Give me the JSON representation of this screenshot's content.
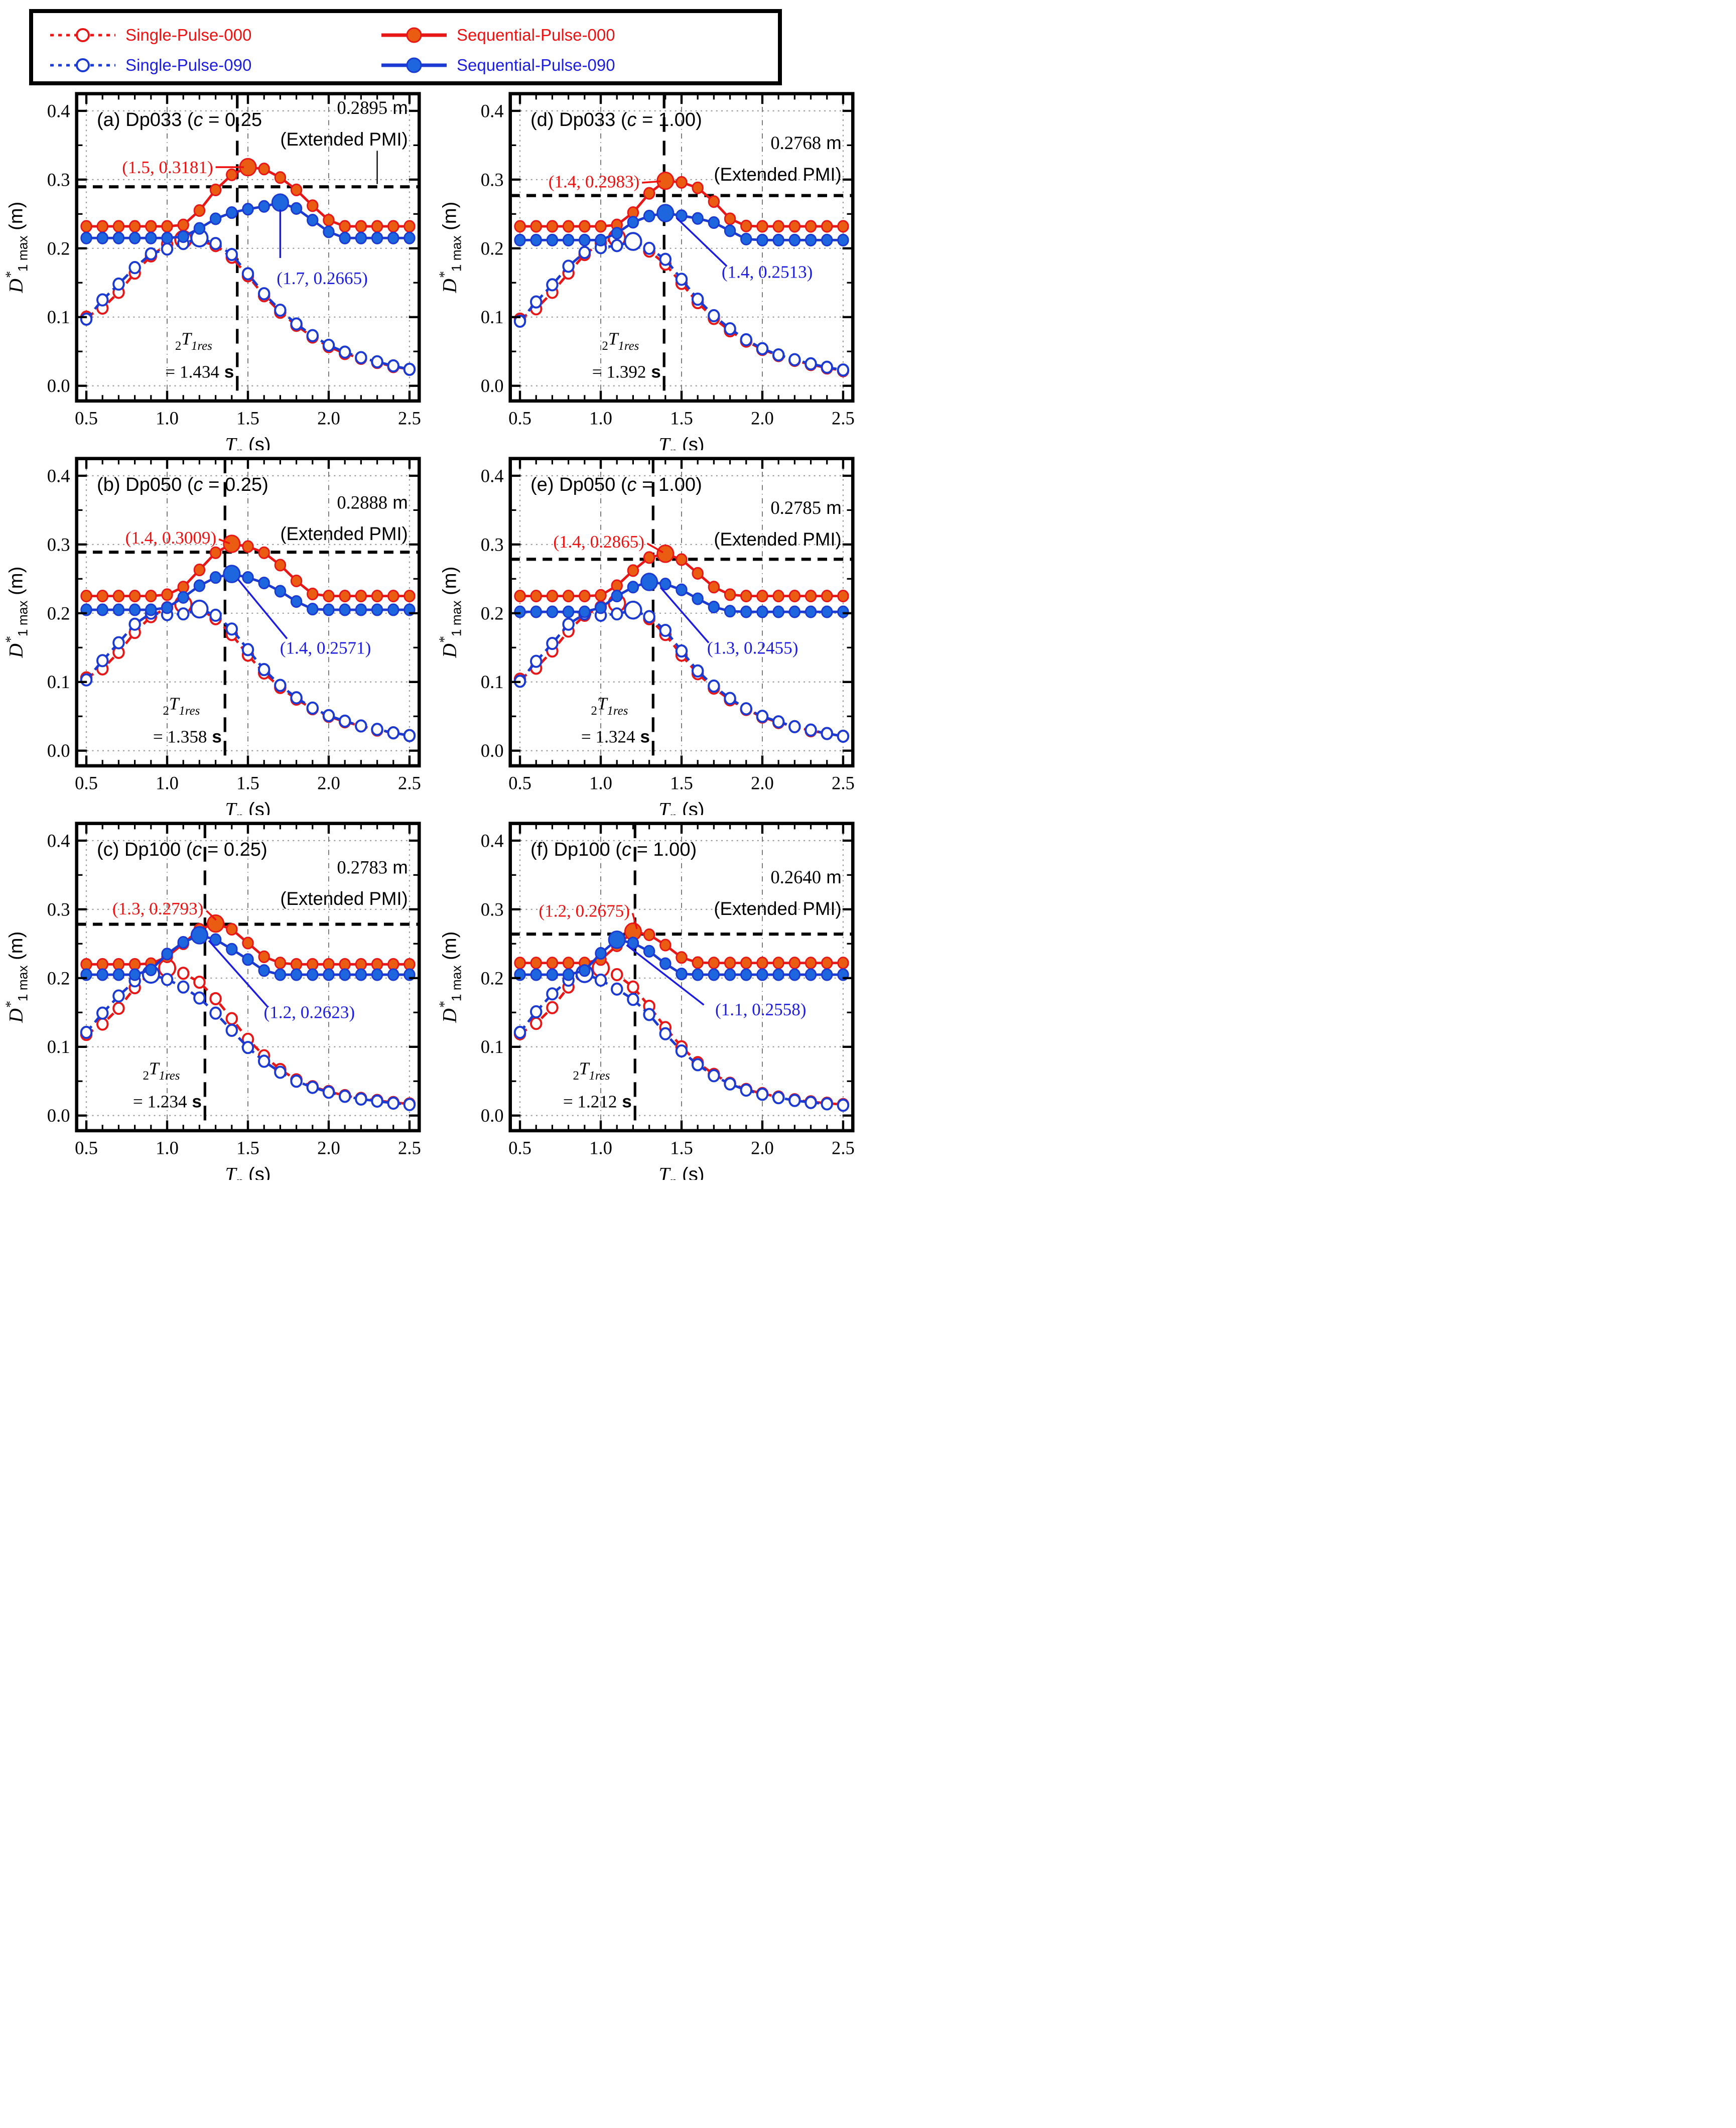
{
  "figure": {
    "legend": {
      "items": [
        {
          "id": "single-pulse-000",
          "label": "Single-Pulse-000",
          "color": "red",
          "line": "dashed",
          "marker": "open"
        },
        {
          "id": "sequential-pulse-000",
          "label": "Sequential-Pulse-000",
          "color": "red",
          "line": "solid",
          "marker": "filled"
        },
        {
          "id": "single-pulse-090",
          "label": "Single-Pulse-090",
          "color": "blue",
          "line": "dashed",
          "marker": "open"
        },
        {
          "id": "sequential-pulse-090",
          "label": "Sequential-Pulse-090",
          "color": "blue",
          "line": "solid",
          "marker": "filled"
        }
      ]
    },
    "colors": {
      "red_line": "#e81717",
      "red_fill": "#e95c12",
      "red_text": "#ee1111",
      "blue_line": "#1b3ad2",
      "blue_fill": "#1e66dd",
      "blue_text": "#1d1de0",
      "black": "#000000",
      "grid": "#999999"
    },
    "axes": {
      "x": {
        "label_main": "T",
        "label_sub": "p",
        "label_unit": " (s)",
        "ticks": [
          "0.5",
          "1.0",
          "1.5",
          "2.0",
          "2.5"
        ]
      },
      "y": {
        "label_main": "D",
        "label_sup": "*",
        "label_sub": "1 max",
        "label_unit": " (m)",
        "ticks": [
          "0.0",
          "0.1",
          "0.2",
          "0.3",
          "0.4"
        ]
      }
    }
  },
  "chart_data": {
    "type": "line",
    "xlabel": "Tp (s)",
    "ylabel": "D*1max (m)",
    "x_range": [
      0.5,
      2.5
    ],
    "y_range": [
      0.0,
      0.4
    ],
    "x": [
      0.5,
      0.6,
      0.7,
      0.8,
      0.9,
      1.0,
      1.1,
      1.2,
      1.3,
      1.4,
      1.5,
      1.6,
      1.7,
      1.8,
      1.9,
      2.0,
      2.1,
      2.2,
      2.3,
      2.4,
      2.5
    ],
    "series_names": [
      "Single-Pulse-000",
      "Single-Pulse-090",
      "Sequential-Pulse-000",
      "Sequential-Pulse-090"
    ],
    "panels": [
      {
        "id": "a",
        "title_prefix": "(a) Dp033 (",
        "title_c": "c",
        "title_suffix": " = 0.25",
        "pmi_label": "0.2895 m",
        "pmi_caption": "(Extended PMI)",
        "pmi_value": 0.2895,
        "tres_symbol": {
          "pre": "2",
          "main": "T",
          "sub": "1res"
        },
        "tres_label": "= 1.434 s",
        "tres_value": 1.434,
        "red_peak_label": "(1.5, 0.3181)",
        "red_peak": [
          1.5,
          0.3181
        ],
        "blue_peak_label": "(1.7, 0.2665)",
        "blue_peak": [
          1.7,
          0.2665
        ],
        "series": {
          "sequential_000": {
            "peak_index": 10,
            "values": [
              0.232,
              0.232,
              0.232,
              0.232,
              0.232,
              0.232,
              0.234,
              0.255,
              0.285,
              0.307,
              0.3181,
              0.3155,
              0.303,
              0.285,
              0.262,
              0.241,
              0.232,
              0.232,
              0.232,
              0.232,
              0.232
            ]
          },
          "sequential_090": {
            "peak_index": 12,
            "values": [
              0.215,
              0.215,
              0.215,
              0.215,
              0.215,
              0.215,
              0.217,
              0.229,
              0.243,
              0.252,
              0.257,
              0.261,
              0.2665,
              0.258,
              0.241,
              0.224,
              0.215,
              0.215,
              0.215,
              0.215,
              0.215
            ]
          },
          "single_000": {
            "peak_index": 6,
            "values": [
              0.1,
              0.113,
              0.136,
              0.164,
              0.189,
              0.206,
              0.213,
              0.211,
              0.204,
              0.187,
              0.16,
              0.131,
              0.107,
              0.088,
              0.071,
              0.057,
              0.047,
              0.04,
              0.034,
              0.028,
              0.024
            ]
          },
          "single_090": {
            "peak_index": 7,
            "values": [
              0.097,
              0.125,
              0.148,
              0.172,
              0.192,
              0.199,
              0.207,
              0.215,
              0.207,
              0.191,
              0.163,
              0.134,
              0.11,
              0.09,
              0.073,
              0.059,
              0.049,
              0.041,
              0.035,
              0.029,
              0.024
            ]
          }
        }
      },
      {
        "id": "d",
        "title_prefix": "(d) Dp033 (",
        "title_c": "c",
        "title_suffix": " = 1.00)",
        "pmi_label": "0.2768 m",
        "pmi_caption": "(Extended PMI)",
        "pmi_value": 0.2768,
        "tres_symbol": {
          "pre": "2",
          "main": "T",
          "sub": "1res"
        },
        "tres_label": "= 1.392 s",
        "tres_value": 1.392,
        "red_peak_label": "(1.4, 0.2983)",
        "red_peak": [
          1.4,
          0.2983
        ],
        "blue_peak_label": "(1.4, 0.2513)",
        "blue_peak": [
          1.4,
          0.2513
        ],
        "series": {
          "sequential_000": {
            "peak_index": 9,
            "values": [
              0.232,
              0.232,
              0.232,
              0.232,
              0.232,
              0.232,
              0.234,
              0.252,
              0.28,
              0.2983,
              0.296,
              0.288,
              0.268,
              0.243,
              0.2325,
              0.232,
              0.232,
              0.232,
              0.232,
              0.232,
              0.232
            ]
          },
          "sequential_090": {
            "peak_index": 9,
            "values": [
              0.212,
              0.212,
              0.212,
              0.212,
              0.212,
              0.212,
              0.222,
              0.238,
              0.247,
              0.2513,
              0.2475,
              0.2435,
              0.2375,
              0.2255,
              0.2135,
              0.212,
              0.212,
              0.212,
              0.212,
              0.212,
              0.212
            ]
          },
          "single_000": {
            "peak_index": 6,
            "values": [
              0.097,
              0.112,
              0.136,
              0.164,
              0.191,
              0.208,
              0.215,
              0.209,
              0.196,
              0.177,
              0.149,
              0.121,
              0.098,
              0.08,
              0.065,
              0.053,
              0.044,
              0.037,
              0.031,
              0.026,
              0.022
            ]
          },
          "single_090": {
            "peak_index": 7,
            "values": [
              0.094,
              0.122,
              0.147,
              0.174,
              0.194,
              0.201,
              0.204,
              0.21,
              0.2,
              0.184,
              0.155,
              0.126,
              0.102,
              0.083,
              0.067,
              0.054,
              0.045,
              0.038,
              0.032,
              0.027,
              0.023
            ]
          }
        }
      },
      {
        "id": "b",
        "title_prefix": "(b) Dp050 (",
        "title_c": "c",
        "title_suffix": " = 0.25)",
        "pmi_label": "0.2888 m",
        "pmi_caption": "(Extended PMI)",
        "pmi_value": 0.2888,
        "tres_symbol": {
          "pre": "2",
          "main": "T",
          "sub": "1res"
        },
        "tres_label": "= 1.358 s",
        "tres_value": 1.358,
        "red_peak_label": "(1.4, 0.3009)",
        "red_peak": [
          1.4,
          0.3009
        ],
        "blue_peak_label": "(1.4, 0.2571)",
        "blue_peak": [
          1.4,
          0.2571
        ],
        "series": {
          "sequential_000": {
            "peak_index": 9,
            "values": [
              0.225,
              0.225,
              0.225,
              0.225,
              0.225,
              0.227,
              0.238,
              0.263,
              0.288,
              0.3009,
              0.297,
              0.288,
              0.27,
              0.247,
              0.228,
              0.225,
              0.225,
              0.225,
              0.225,
              0.225,
              0.225
            ]
          },
          "sequential_090": {
            "peak_index": 9,
            "values": [
              0.205,
              0.205,
              0.205,
              0.205,
              0.205,
              0.208,
              0.223,
              0.24,
              0.252,
              0.2571,
              0.252,
              0.244,
              0.232,
              0.217,
              0.206,
              0.205,
              0.205,
              0.205,
              0.205,
              0.205,
              0.205
            ]
          },
          "single_000": {
            "peak_index": 6,
            "values": [
              0.106,
              0.119,
              0.143,
              0.172,
              0.195,
              0.208,
              0.213,
              0.206,
              0.192,
              0.169,
              0.139,
              0.113,
              0.092,
              0.075,
              0.061,
              0.05,
              0.042,
              0.036,
              0.03,
              0.026,
              0.022
            ]
          },
          "single_090": {
            "peak_index": 7,
            "values": [
              0.103,
              0.131,
              0.157,
              0.184,
              0.2,
              0.198,
              0.199,
              0.206,
              0.197,
              0.177,
              0.147,
              0.118,
              0.095,
              0.077,
              0.062,
              0.051,
              0.043,
              0.036,
              0.031,
              0.026,
              0.022
            ]
          }
        }
      },
      {
        "id": "e",
        "title_prefix": "(e) Dp050 (",
        "title_c": "c",
        "title_suffix": " = 1.00)",
        "pmi_label": "0.2785 m",
        "pmi_caption": "(Extended PMI)",
        "pmi_value": 0.2785,
        "tres_symbol": {
          "pre": "2",
          "main": "T",
          "sub": "1res"
        },
        "tres_label": "= 1.324 s",
        "tres_value": 1.324,
        "red_peak_label": "(1.4, 0.2865)",
        "red_peak": [
          1.4,
          0.2865
        ],
        "blue_peak_label": "(1.3, 0.2455)",
        "blue_peak": [
          1.3,
          0.2455
        ],
        "series": {
          "sequential_000": {
            "peak_index": 9,
            "values": [
              0.225,
              0.225,
              0.225,
              0.225,
              0.225,
              0.226,
              0.24,
              0.262,
              0.281,
              0.2865,
              0.278,
              0.258,
              0.238,
              0.227,
              0.225,
              0.225,
              0.225,
              0.225,
              0.225,
              0.225,
              0.225
            ]
          },
          "sequential_090": {
            "peak_index": 8,
            "values": [
              0.202,
              0.202,
              0.202,
              0.202,
              0.202,
              0.208,
              0.225,
              0.238,
              0.2455,
              0.2425,
              0.234,
              0.221,
              0.209,
              0.203,
              0.202,
              0.202,
              0.202,
              0.202,
              0.202,
              0.202,
              0.202
            ]
          },
          "single_000": {
            "peak_index": 6,
            "values": [
              0.104,
              0.12,
              0.145,
              0.174,
              0.197,
              0.209,
              0.2145,
              0.207,
              0.192,
              0.169,
              0.139,
              0.112,
              0.091,
              0.074,
              0.06,
              0.049,
              0.041,
              0.035,
              0.029,
              0.025,
              0.021
            ]
          },
          "single_090": {
            "peak_index": 7,
            "values": [
              0.101,
              0.13,
              0.156,
              0.184,
              0.199,
              0.197,
              0.199,
              0.2045,
              0.195,
              0.175,
              0.145,
              0.116,
              0.094,
              0.076,
              0.061,
              0.05,
              0.042,
              0.035,
              0.03,
              0.025,
              0.021
            ]
          }
        }
      },
      {
        "id": "c",
        "title_prefix": "(c) Dp100 (",
        "title_c": "c",
        "title_suffix": " = 0.25)",
        "pmi_label": "0.2783 m",
        "pmi_caption": "(Extended PMI)",
        "pmi_value": 0.2783,
        "tres_symbol": {
          "pre": "2",
          "main": "T",
          "sub": "1res"
        },
        "tres_label": "= 1.234 s",
        "tres_value": 1.234,
        "red_peak_label": "(1.3, 0.2793)",
        "red_peak": [
          1.3,
          0.2793
        ],
        "blue_peak_label": "(1.2, 0.2623)",
        "blue_peak": [
          1.2,
          0.2623
        ],
        "series": {
          "sequential_000": {
            "peak_index": 8,
            "values": [
              0.22,
              0.22,
              0.22,
              0.22,
              0.221,
              0.231,
              0.25,
              0.271,
              0.2793,
              0.271,
              0.251,
              0.231,
              0.222,
              0.22,
              0.22,
              0.22,
              0.22,
              0.22,
              0.22,
              0.22,
              0.22
            ]
          },
          "sequential_090": {
            "peak_index": 7,
            "values": [
              0.205,
              0.205,
              0.205,
              0.205,
              0.212,
              0.235,
              0.252,
              0.2623,
              0.256,
              0.242,
              0.227,
              0.211,
              0.205,
              0.205,
              0.205,
              0.205,
              0.205,
              0.205,
              0.205,
              0.205,
              0.205
            ]
          },
          "single_000": {
            "peak_index": 5,
            "values": [
              0.118,
              0.133,
              0.156,
              0.186,
              0.208,
              0.2145,
              0.207,
              0.194,
              0.17,
              0.141,
              0.111,
              0.087,
              0.067,
              0.052,
              0.042,
              0.035,
              0.029,
              0.025,
              0.022,
              0.019,
              0.017
            ]
          },
          "single_090": {
            "peak_index": 4,
            "values": [
              0.121,
              0.149,
              0.174,
              0.196,
              0.2055,
              0.198,
              0.187,
              0.171,
              0.149,
              0.124,
              0.099,
              0.079,
              0.063,
              0.05,
              0.041,
              0.034,
              0.028,
              0.024,
              0.021,
              0.018,
              0.016
            ]
          }
        }
      },
      {
        "id": "f",
        "title_prefix": "(f) Dp100 (",
        "title_c": "c",
        "title_suffix": " = 1.00)",
        "pmi_label": "0.2640 m",
        "pmi_caption": "(Extended PMI)",
        "pmi_value": 0.264,
        "tres_symbol": {
          "pre": "2",
          "main": "T",
          "sub": "1res"
        },
        "tres_label": "= 1.212 s",
        "tres_value": 1.212,
        "red_peak_label": "(1.2, 0.2675)",
        "red_peak": [
          1.2,
          0.2675
        ],
        "blue_peak_label": "(1.1, 0.2558)",
        "blue_peak": [
          1.1,
          0.2558
        ],
        "series": {
          "sequential_000": {
            "peak_index": 7,
            "values": [
              0.222,
              0.222,
              0.222,
              0.222,
              0.222,
              0.227,
              0.247,
              0.2675,
              0.263,
              0.248,
              0.23,
              0.2225,
              0.222,
              0.222,
              0.222,
              0.222,
              0.222,
              0.222,
              0.222,
              0.222,
              0.222
            ]
          },
          "sequential_090": {
            "peak_index": 6,
            "values": [
              0.205,
              0.205,
              0.205,
              0.205,
              0.211,
              0.236,
              0.2558,
              0.251,
              0.239,
              0.221,
              0.206,
              0.205,
              0.205,
              0.205,
              0.205,
              0.205,
              0.205,
              0.205,
              0.205,
              0.205,
              0.205
            ]
          },
          "single_000": {
            "peak_index": 5,
            "values": [
              0.119,
              0.134,
              0.157,
              0.187,
              0.208,
              0.2145,
              0.205,
              0.187,
              0.159,
              0.128,
              0.1,
              0.077,
              0.06,
              0.047,
              0.038,
              0.032,
              0.027,
              0.023,
              0.02,
              0.018,
              0.016
            ]
          },
          "single_090": {
            "peak_index": 4,
            "values": [
              0.121,
              0.151,
              0.177,
              0.197,
              0.2065,
              0.197,
              0.184,
              0.169,
              0.147,
              0.119,
              0.094,
              0.074,
              0.058,
              0.046,
              0.037,
              0.031,
              0.026,
              0.022,
              0.019,
              0.017,
              0.015
            ]
          }
        }
      }
    ]
  }
}
